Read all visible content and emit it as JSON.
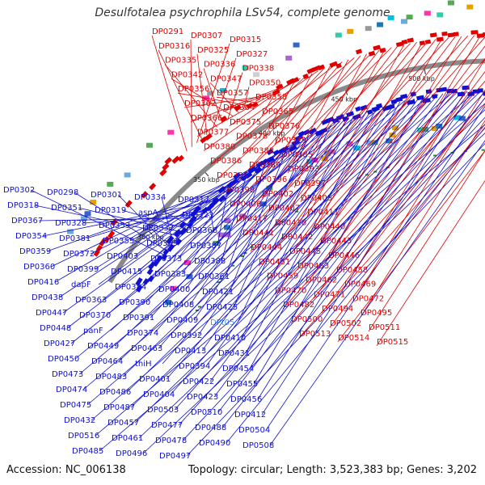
{
  "title": "Desulfotalea psychrophila LSv54, complete genome",
  "footer": {
    "accession": "Accession: NC_006138",
    "summary": "Topology: circular; Length: 3,523,383 bp; Genes: 3,202"
  },
  "colors": {
    "forward": "#e00000",
    "reverse": "#1010d0",
    "rna": "#29a3ff",
    "backbone": "#8a8a8a"
  },
  "ticks": [
    "300 kbp",
    "350 kbp",
    "400 kbp",
    "450 kbp",
    "500 kbp",
    "550 kbp"
  ],
  "forward_labels": [
    "DP0291",
    "DP0307",
    "DP0315",
    "DP0316",
    "DP0325",
    "DP0327",
    "DP0335",
    "DP0336",
    "DP0338",
    "DP0342",
    "DP0347",
    "DP0350",
    "DP0356",
    "DP0357",
    "DP0358",
    "DP0362",
    "DP0364",
    "DP0365",
    "DP0366",
    "DP0375",
    "DP0376",
    "DP0377",
    "DP0378",
    "DP0379",
    "DP0380",
    "DP0382",
    "DP0385",
    "DP0386",
    "DP0389",
    "DP0393",
    "DP0395",
    "DP0396",
    "DP0397",
    "DP0398",
    "DP0402",
    "DP0405",
    "DP0406",
    "DP0407",
    "DP0411",
    "DP0417",
    "DP0418",
    "DP0440",
    "DP0441",
    "DP0442",
    "DP0443",
    "DP0444",
    "DP0445",
    "DP0446",
    "DP0451",
    "DP0453",
    "DP0458",
    "DP0459",
    "DP0462",
    "DP0469",
    "DP0470",
    "DP0471",
    "DP0472",
    "DP0482",
    "DP0494",
    "DP0495",
    "DP0500",
    "DP0502",
    "DP0511",
    "DP0513",
    "DP0514",
    "DP0515"
  ],
  "reverse_labels": [
    "DP0302",
    "DP0298",
    "DP0301",
    "DP0334",
    "DP0317",
    "DP0318",
    "DP0351",
    "DP0319",
    "aspA",
    "DP0323",
    "DP0367",
    "DP0328",
    "DP0353",
    "DP0332",
    "DP0368",
    "DP0354",
    "DP0381",
    "DP0355",
    "DP0369",
    "DP0387",
    "DP0359",
    "DP0372",
    "DP0403",
    "DP0373",
    "DP0388",
    "DP0360",
    "DP0399",
    "DP0415",
    "DP0383",
    "DP0361",
    "DP0416",
    "dapF",
    "DP0384",
    "DP0400",
    "DP0421",
    "DP0438",
    "DP0363",
    "DP0390",
    "DP0408",
    "DP0425",
    "DP0447",
    "DP0370",
    "DP0391",
    "DP0409",
    "DPt05",
    "DP0448",
    "panF",
    "DP0374",
    "DP0392",
    "DP0410",
    "DP0427",
    "DP0449",
    "DP0463",
    "DP0413",
    "DP0431",
    "DP0450",
    "DP0464",
    "thiH",
    "DP0394",
    "DP0454",
    "DP0473",
    "DP0483",
    "DP0401",
    "DP0422",
    "DP0455",
    "DP0474",
    "DP0486",
    "DP0404",
    "DP0423",
    "DP0456",
    "DP0475",
    "DP0487",
    "DP0503",
    "DP0510",
    "DP0412",
    "DP0432",
    "DP0457",
    "DP0477",
    "DP0488",
    "DP0504",
    "DP0516",
    "DP0461",
    "DP0478",
    "DP0490",
    "DP0508",
    "DP0485",
    "DP0496",
    "DP0497"
  ]
}
